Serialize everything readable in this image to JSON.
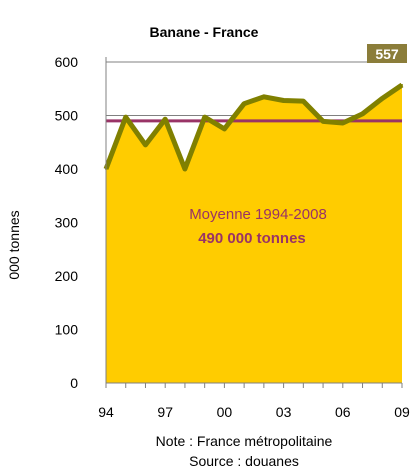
{
  "chart_data": {
    "type": "area",
    "title": "Banane - France",
    "ylabel": "000 tonnes",
    "x_tick_labels": [
      "94",
      "97",
      "00",
      "03",
      "06",
      "09"
    ],
    "y_ticks": [
      0,
      100,
      200,
      300,
      400,
      500,
      600
    ],
    "ylim": [
      0,
      600
    ],
    "xlim": [
      1994,
      2009
    ],
    "x": [
      1994,
      1995,
      1996,
      1997,
      1998,
      1999,
      2000,
      2001,
      2002,
      2003,
      2004,
      2005,
      2006,
      2007,
      2008,
      2009
    ],
    "series": [
      {
        "values": [
          400,
          497,
          445,
          493,
          400,
          497,
          475,
          522,
          535,
          528,
          527,
          489,
          486,
          503,
          532,
          557
        ]
      }
    ],
    "average": {
      "value": 490,
      "label_line1": "Moyenne 1994-2008",
      "label_line2": "490 000 tonnes"
    },
    "last_value_label": "557",
    "notes": [
      "Note : France métropolitaine",
      "Source : douanes"
    ],
    "colors": {
      "fill": "#FFCC00",
      "line": "#808000",
      "average": "#993366",
      "badge": "#8B7D3A"
    }
  }
}
